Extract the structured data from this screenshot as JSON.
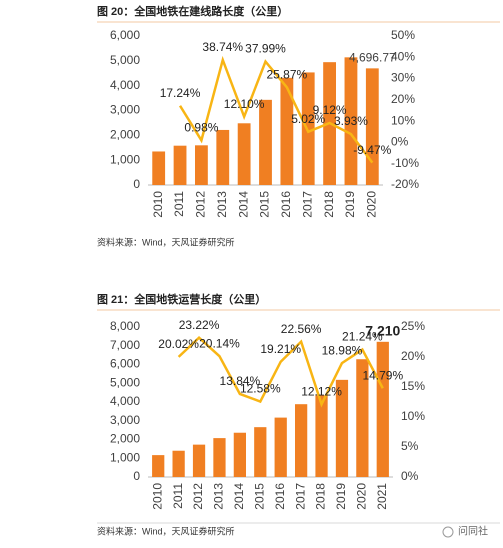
{
  "chart_data": [
    {
      "type": "bar",
      "title": "图 20：全国地铁在建线路长度（公里）",
      "source": "资料来源：Wind，天风证券研究所",
      "categories": [
        "2010",
        "2011",
        "2012",
        "2013",
        "2014",
        "2015",
        "2016",
        "2017",
        "2018",
        "2019",
        "2020"
      ],
      "series": [
        {
          "type": "bar",
          "color": "#f07f22",
          "values": [
            1350,
            1583,
            1598,
            2217,
            2485,
            3429,
            4316,
            4533,
            4946,
            5141,
            4696.77
          ],
          "value_labels": [
            null,
            null,
            null,
            null,
            null,
            null,
            null,
            null,
            null,
            null,
            "4,696.77"
          ]
        },
        {
          "type": "line",
          "axis": "y2",
          "color": "#f8b514",
          "values": [
            null,
            17.24,
            0.98,
            38.74,
            12.1,
            37.99,
            25.87,
            5.02,
            9.12,
            3.93,
            -9.47
          ],
          "value_labels": [
            null,
            "17.24%",
            "0.98%",
            "38.74%",
            "12.10%",
            "37.99%",
            "25.87%",
            "5.02%",
            "9.12%",
            "3.93%",
            "-9.47%"
          ]
        }
      ],
      "ylim": [
        0,
        6000
      ],
      "yticks": [
        0,
        {
          "value": 1000,
          "label": "1,000"
        },
        {
          "value": 2000,
          "label": "2,000"
        },
        {
          "value": 3000,
          "label": "3,000"
        },
        {
          "value": 4000,
          "label": "4,000"
        },
        {
          "value": 5000,
          "label": "5,000"
        },
        {
          "value": 6000,
          "label": "6,000"
        }
      ],
      "y2lim": [
        -20,
        50
      ],
      "y2ticks": [
        {
          "value": -20,
          "label": "-20%"
        },
        {
          "value": -10,
          "label": "-10%"
        },
        {
          "value": 0,
          "label": "0%"
        },
        {
          "value": 10,
          "label": "10%"
        },
        {
          "value": 20,
          "label": "20%"
        },
        {
          "value": 30,
          "label": "30%"
        },
        {
          "value": 40,
          "label": "40%"
        },
        {
          "value": 50,
          "label": "50%"
        }
      ]
    },
    {
      "type": "bar",
      "title": "图 21：全国地铁运营长度（公里）",
      "source": "资料来源：Wind，天风证券研究所",
      "categories": [
        "2010",
        "2011",
        "2012",
        "2013",
        "2014",
        "2015",
        "2016",
        "2017",
        "2018",
        "2019",
        "2020",
        "2021"
      ],
      "series": [
        {
          "type": "bar",
          "color": "#f07f22",
          "values": [
            1167,
            1401,
            1726,
            2074,
            2361,
            2658,
            3168,
            3883,
            4354,
            5181,
            6281,
            7210
          ],
          "value_labels": [
            null,
            null,
            null,
            null,
            null,
            null,
            null,
            null,
            null,
            null,
            null,
            "7,210"
          ]
        },
        {
          "type": "line",
          "axis": "y2",
          "color": "#f8b514",
          "values": [
            null,
            20.02,
            23.22,
            20.14,
            13.84,
            12.58,
            19.21,
            22.56,
            12.12,
            18.98,
            21.24,
            14.79
          ],
          "value_labels": [
            null,
            "20.02%",
            "23.22%",
            "20.14%",
            "13.84%",
            "12.58%",
            "19.21%",
            "22.56%",
            "12.12%",
            "18.98%",
            "21.24%",
            "14.79%"
          ]
        }
      ],
      "ylim": [
        0,
        8000
      ],
      "yticks": [
        0,
        {
          "value": 1000,
          "label": "1,000"
        },
        {
          "value": 2000,
          "label": "2,000"
        },
        {
          "value": 3000,
          "label": "3,000"
        },
        {
          "value": 4000,
          "label": "4,000"
        },
        {
          "value": 5000,
          "label": "5,000"
        },
        {
          "value": 6000,
          "label": "6,000"
        },
        {
          "value": 7000,
          "label": "7,000"
        },
        {
          "value": 8000,
          "label": "8,000"
        }
      ],
      "y2lim": [
        0,
        25
      ],
      "y2ticks": [
        {
          "value": 0,
          "label": "0%"
        },
        {
          "value": 5,
          "label": "5%"
        },
        {
          "value": 10,
          "label": "10%"
        },
        {
          "value": 15,
          "label": "15%"
        },
        {
          "value": 20,
          "label": "20%"
        },
        {
          "value": 25,
          "label": "25%"
        }
      ]
    }
  ],
  "watermark": "问同社"
}
